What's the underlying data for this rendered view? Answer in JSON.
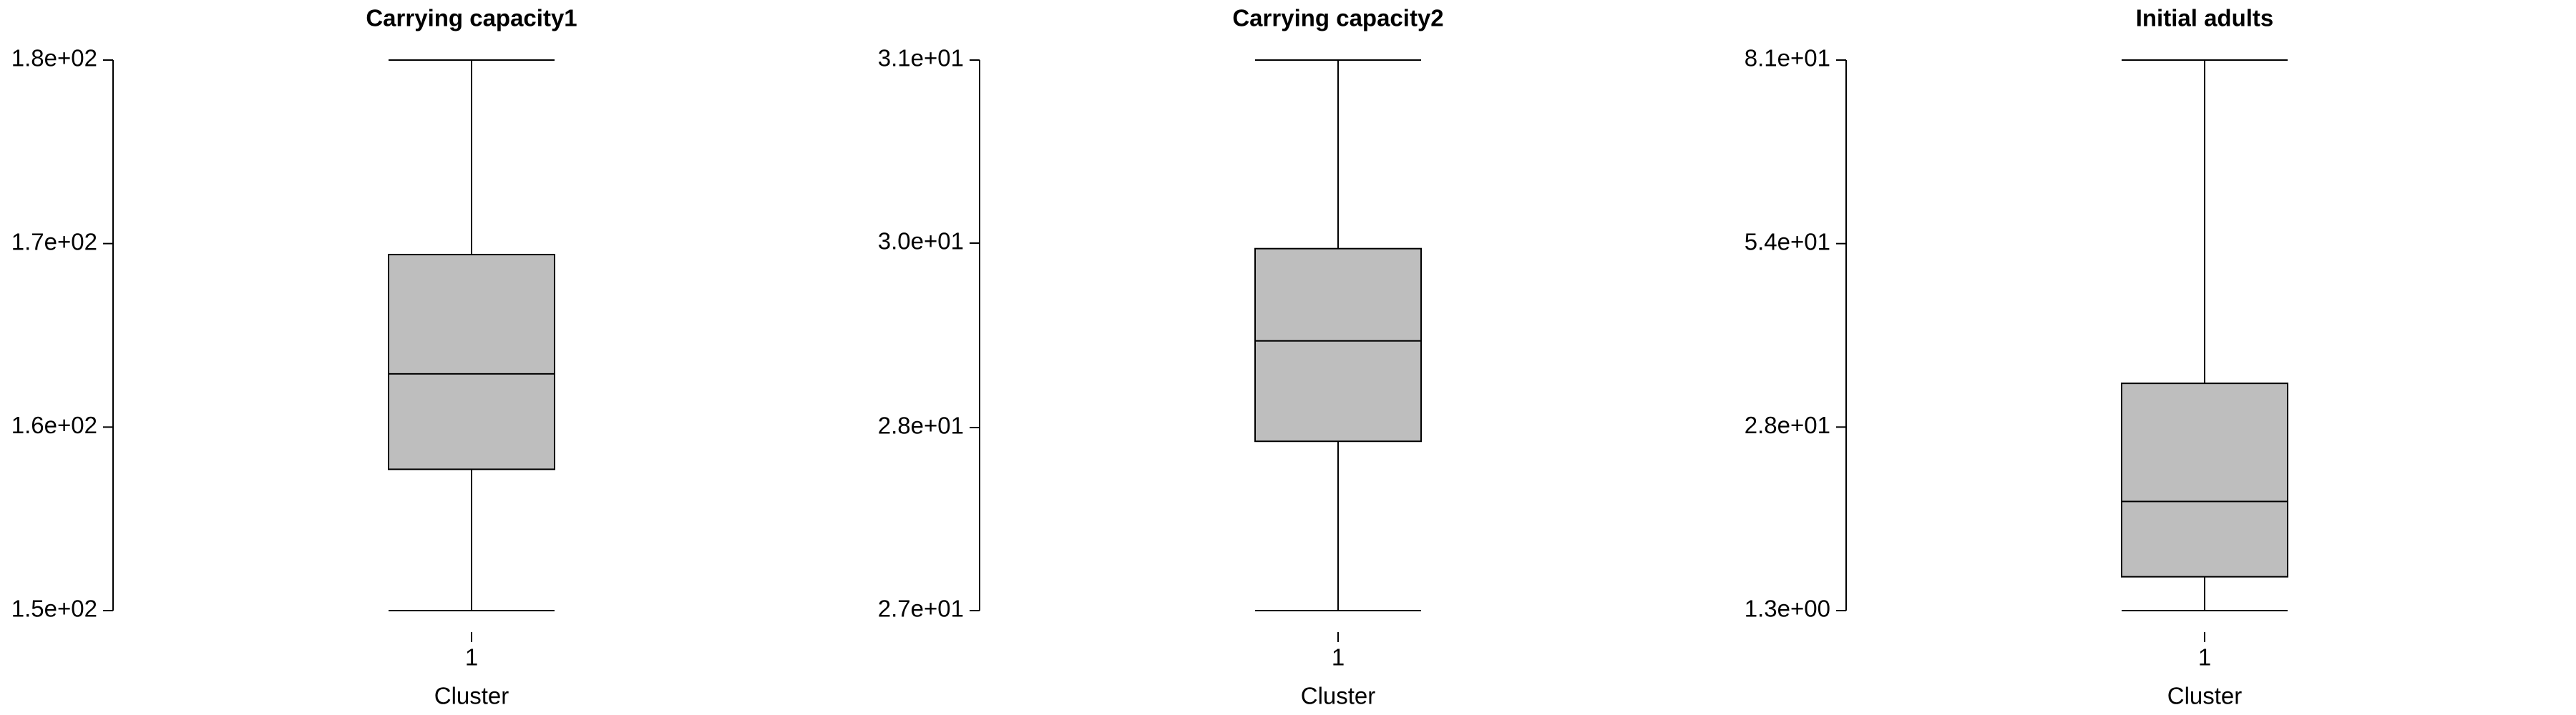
{
  "chart_data": [
    {
      "type": "box",
      "title": "Carrying capacity1",
      "xlabel": "Cluster",
      "categories": [
        "1"
      ],
      "color": "#bebebe",
      "boxes": [
        {
          "min": 150,
          "q1": 157.7,
          "median": 162.9,
          "q3": 169.4,
          "max": 180
        }
      ],
      "ylim": [
        150,
        180
      ],
      "yticks": [
        {
          "value": 150,
          "label": "1.5e+02"
        },
        {
          "value": 160,
          "label": "1.6e+02"
        },
        {
          "value": 170,
          "label": "1.7e+02"
        },
        {
          "value": 180,
          "label": "1.8e+02"
        }
      ]
    },
    {
      "type": "box",
      "title": "Carrying capacity2",
      "xlabel": "Cluster",
      "categories": [
        "1"
      ],
      "color": "#bebebe",
      "boxes": [
        {
          "min": 27,
          "q1": 28.23,
          "median": 28.96,
          "q3": 29.63,
          "max": 31
        }
      ],
      "ylim": [
        27,
        31
      ],
      "yticks": [
        {
          "value": 27,
          "label": "2.7e+01"
        },
        {
          "value": 28.33,
          "label": "2.8e+01"
        },
        {
          "value": 29.67,
          "label": "3.0e+01"
        },
        {
          "value": 31,
          "label": "3.1e+01"
        }
      ]
    },
    {
      "type": "box",
      "title": "Initial adults",
      "xlabel": "Cluster",
      "categories": [
        "1"
      ],
      "color": "#bebebe",
      "boxes": [
        {
          "min": 1.3,
          "q1": 6.2,
          "median": 17.1,
          "q3": 34.2,
          "max": 81
        }
      ],
      "ylim": [
        1.3,
        81
      ],
      "yticks": [
        {
          "value": 1.3,
          "label": "1.3e+00"
        },
        {
          "value": 27.87,
          "label": "2.8e+01"
        },
        {
          "value": 54.43,
          "label": "5.4e+01"
        },
        {
          "value": 81,
          "label": "8.1e+01"
        }
      ]
    }
  ]
}
